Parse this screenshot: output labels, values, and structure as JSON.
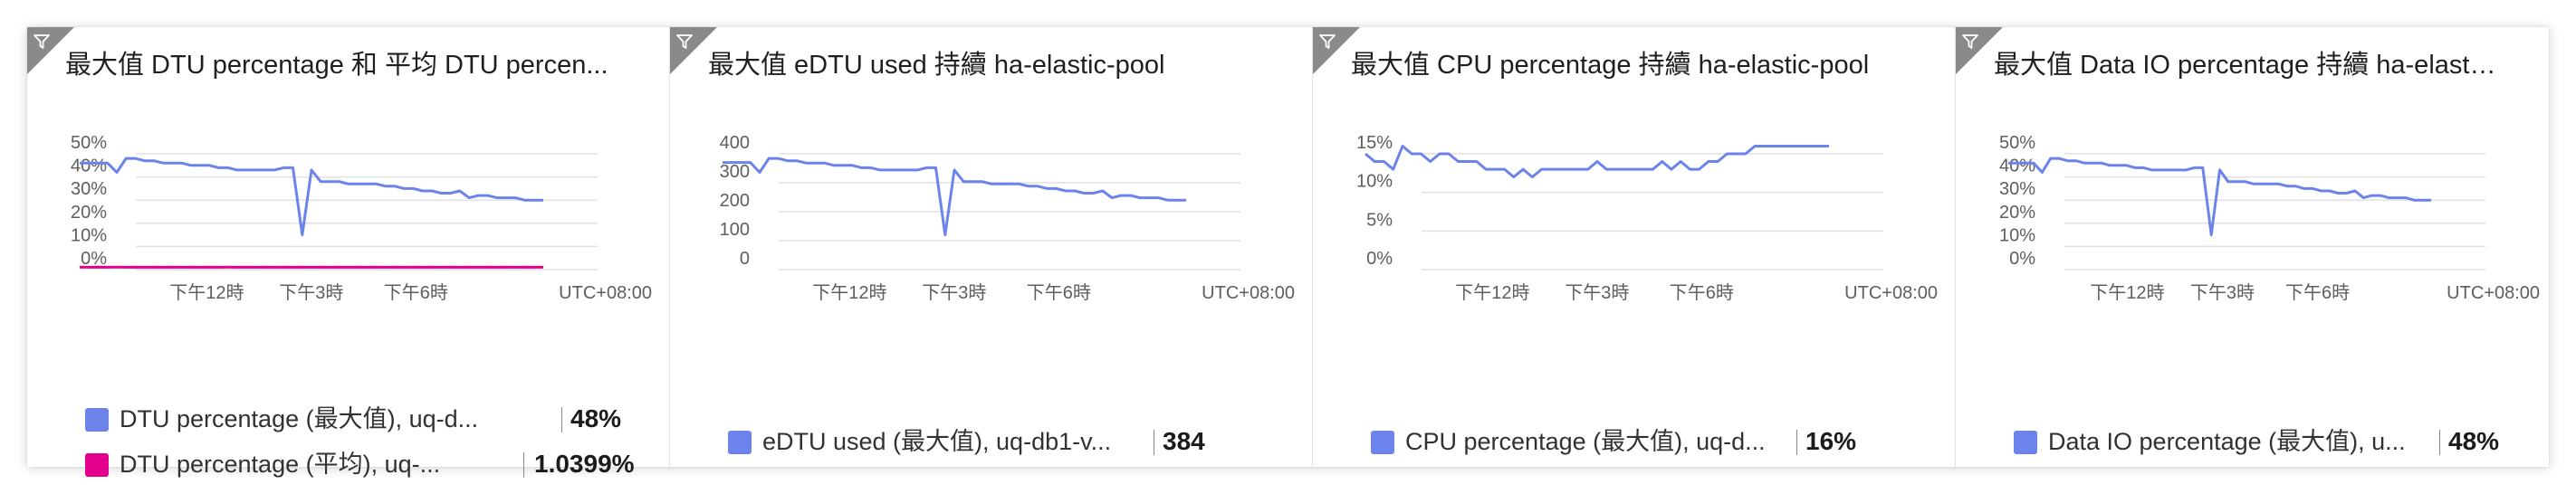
{
  "tiles": [
    {
      "title": "最大值 DTU percentage 和 平均 DTU percen...",
      "legend": [
        {
          "label": "DTU percentage (最大值), uq-d...",
          "value": "48%",
          "color": "#6b83ea"
        },
        {
          "label": "DTU percentage (平均), uq-...",
          "value": "1.0399%",
          "color": "#e3008c"
        }
      ]
    },
    {
      "title": "最大值 eDTU used 持續 ha-elastic-pool",
      "legend": [
        {
          "label": "eDTU used (最大值), uq-db1-v...",
          "value": "384",
          "color": "#6b83ea"
        }
      ]
    },
    {
      "title": "最大值 CPU percentage 持續 ha-elastic-pool",
      "legend": [
        {
          "label": "CPU percentage (最大值), uq-d...",
          "value": "16%",
          "color": "#6b83ea"
        }
      ]
    },
    {
      "title": "最大值 Data IO percentage 持續 ha-elastic-...",
      "legend": [
        {
          "label": "Data IO percentage (最大值), u...",
          "value": "48%",
          "color": "#6b83ea"
        }
      ]
    }
  ],
  "chart_data": [
    {
      "type": "line",
      "yticks": [
        "50%",
        "40%",
        "30%",
        "20%",
        "10%",
        "0%"
      ],
      "ylim": [
        0,
        50
      ],
      "xticks": [
        "下午12時",
        "下午3時",
        "下午6時"
      ],
      "timezone": "UTC+08:00",
      "grid": true,
      "series": [
        {
          "color": "#6b83ea",
          "values": [
            46,
            46,
            46,
            46,
            42,
            48,
            48,
            47,
            47,
            46,
            46,
            46,
            45,
            45,
            45,
            44,
            44,
            43,
            43,
            43,
            43,
            43,
            44,
            44,
            15,
            43,
            38,
            38,
            38,
            37,
            37,
            37,
            37,
            36,
            36,
            35,
            35,
            34,
            34,
            33,
            33,
            34,
            31,
            32,
            32,
            31,
            31,
            31,
            30,
            30,
            30
          ]
        },
        {
          "color": "#e3008c",
          "values": [
            1.1,
            1.0,
            1.1,
            1.0,
            1.1,
            1.0,
            1.1,
            1.0,
            1.1,
            1.0,
            1.1,
            1.0,
            1.1,
            1.0,
            1.1,
            1.0,
            1.1,
            1.0,
            1.1,
            1.0,
            1.1,
            1.0,
            1.1,
            1.0,
            1.1,
            1.0,
            1.1,
            1.0,
            1.1,
            1.0,
            1.1,
            1.0,
            1.1,
            1.0,
            1.1,
            1.0,
            1.1,
            1.0,
            1.1,
            1.0,
            1.1,
            1.0,
            1.1,
            1.0,
            1.1,
            1.0,
            1.1,
            1.0,
            1.1,
            1.0,
            1.1
          ]
        }
      ]
    },
    {
      "type": "line",
      "yticks": [
        "400",
        "300",
        "200",
        "100",
        "0"
      ],
      "ylim": [
        0,
        400
      ],
      "xticks": [
        "下午12時",
        "下午3時",
        "下午6時"
      ],
      "timezone": "UTC+08:00",
      "grid": true,
      "series": [
        {
          "color": "#6b83ea",
          "values": [
            370,
            370,
            370,
            370,
            336,
            384,
            384,
            376,
            376,
            368,
            368,
            368,
            360,
            360,
            360,
            352,
            352,
            344,
            344,
            344,
            344,
            344,
            352,
            352,
            120,
            344,
            304,
            304,
            304,
            296,
            296,
            296,
            296,
            288,
            288,
            280,
            280,
            272,
            272,
            264,
            264,
            272,
            248,
            256,
            256,
            248,
            248,
            248,
            240,
            240,
            240
          ]
        }
      ]
    },
    {
      "type": "line",
      "yticks": [
        "15%",
        "10%",
        "5%",
        "0%"
      ],
      "ylim": [
        0,
        15
      ],
      "xticks": [
        "下午12時",
        "下午3時",
        "下午6時"
      ],
      "timezone": "UTC+08:00",
      "grid": true,
      "series": [
        {
          "color": "#6b83ea",
          "values": [
            15,
            14,
            14,
            13,
            16,
            15,
            15,
            14,
            15,
            15,
            14,
            14,
            14,
            13,
            13,
            13,
            12,
            13,
            12,
            13,
            13,
            13,
            13,
            13,
            13,
            14,
            13,
            13,
            13,
            13,
            13,
            13,
            14,
            13,
            14,
            13,
            13,
            14,
            14,
            15,
            15,
            15,
            16,
            16,
            16,
            16,
            16,
            16,
            16,
            16,
            16
          ]
        }
      ]
    },
    {
      "type": "line",
      "yticks": [
        "50%",
        "40%",
        "30%",
        "20%",
        "10%",
        "0%"
      ],
      "ylim": [
        0,
        50
      ],
      "xticks": [
        "下午12時",
        "下午3時",
        "下午6時"
      ],
      "timezone": "UTC+08:00",
      "grid": true,
      "series": [
        {
          "color": "#6b83ea",
          "values": [
            46,
            46,
            46,
            46,
            42,
            48,
            48,
            47,
            47,
            46,
            46,
            46,
            45,
            45,
            45,
            44,
            44,
            43,
            43,
            43,
            43,
            43,
            44,
            44,
            15,
            43,
            38,
            38,
            38,
            37,
            37,
            37,
            37,
            36,
            36,
            35,
            35,
            34,
            34,
            33,
            33,
            34,
            31,
            32,
            32,
            31,
            31,
            31,
            30,
            30,
            30
          ]
        }
      ]
    }
  ]
}
